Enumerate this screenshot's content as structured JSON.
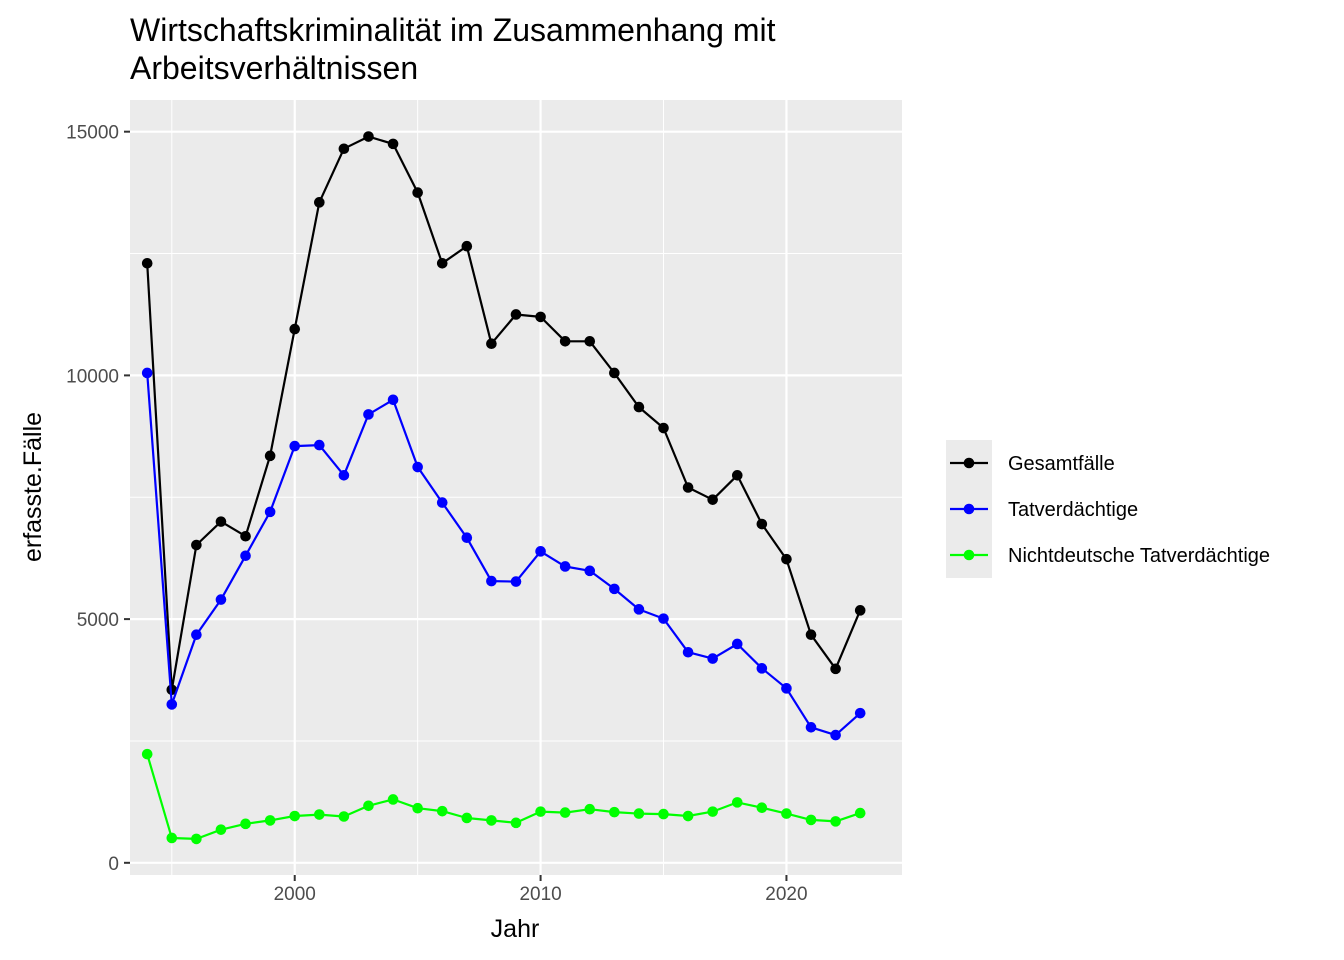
{
  "chart_data": {
    "type": "line",
    "title_lines": [
      "Wirtschaftskriminalität im Zusammenhang mit",
      "Arbeitsverhältnissen"
    ],
    "xlabel": "Jahr",
    "ylabel": "erfasste.Fälle",
    "xlim": [
      1993.3,
      2024.7
    ],
    "ylim": [
      -250,
      15650
    ],
    "x_ticks": [
      2000,
      2010,
      2020
    ],
    "x_ticks_minor": [
      1995,
      2005,
      2015
    ],
    "y_ticks": [
      0,
      5000,
      10000,
      15000
    ],
    "y_ticks_minor": [
      2500,
      7500,
      12500
    ],
    "grid": true,
    "legend_position": "right",
    "x": [
      1994,
      1995,
      1996,
      1997,
      1998,
      1999,
      2000,
      2001,
      2002,
      2003,
      2004,
      2005,
      2006,
      2007,
      2008,
      2009,
      2010,
      2011,
      2012,
      2013,
      2014,
      2015,
      2016,
      2017,
      2018,
      2019,
      2020,
      2021,
      2022,
      2023
    ],
    "series": [
      {
        "name": "Gesamtfälle",
        "color": "#000000",
        "values": [
          12300,
          3550,
          6520,
          7000,
          6700,
          8350,
          10950,
          13550,
          14650,
          14900,
          14750,
          13750,
          12300,
          12650,
          10650,
          11250,
          11200,
          10700,
          10700,
          10050,
          9350,
          8920,
          7700,
          7450,
          7950,
          6950,
          6230,
          4680,
          3980,
          5180
        ]
      },
      {
        "name": "Tatverdächtige",
        "color": "#0000ff",
        "values": [
          10050,
          3250,
          4680,
          5400,
          6300,
          7200,
          8550,
          8570,
          7950,
          9200,
          9500,
          8120,
          7390,
          6670,
          5780,
          5770,
          6390,
          6080,
          5990,
          5620,
          5200,
          5010,
          4320,
          4190,
          4490,
          3990,
          3580,
          2780,
          2620,
          3070
        ]
      },
      {
        "name": "Nichtdeutsche Tatverdächtige",
        "color": "#00ff00",
        "values": [
          2230,
          510,
          490,
          680,
          800,
          870,
          960,
          990,
          950,
          1170,
          1300,
          1120,
          1060,
          920,
          870,
          820,
          1050,
          1030,
          1100,
          1040,
          1010,
          1000,
          960,
          1050,
          1240,
          1130,
          1010,
          880,
          850,
          1020
        ]
      }
    ]
  }
}
